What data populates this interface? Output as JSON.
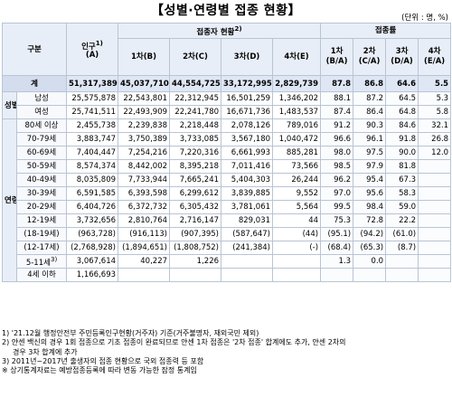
{
  "title": "【성별·연령별 접종 현황】",
  "unit": "(단위 : 명, %)",
  "headers": {
    "category": "구분",
    "population": "인구",
    "population_sup": "1)",
    "population_code": "(A)",
    "vaccination_status": "접종자 현황",
    "vaccination_status_sup": "2)",
    "rate_group": "접종률",
    "dose1": "1차(B)",
    "dose2": "2차(C)",
    "dose3": "3차(D)",
    "dose4": "4차(E)",
    "rate1_a": "1차",
    "rate1_b": "(B/A)",
    "rate2_a": "2차",
    "rate2_b": "(C/A)",
    "rate3_a": "3차",
    "rate3_b": "(D/A)",
    "rate4_a": "4차",
    "rate4_b": "(E/A)"
  },
  "groups": {
    "sex": "성별",
    "age": "연령"
  },
  "rows": [
    {
      "label": "계",
      "pop": "51,317,389",
      "d1": "45,037,710",
      "d2": "44,554,725",
      "d3": "33,172,995",
      "d4": "2,829,739",
      "r1": "87.8",
      "r2": "86.8",
      "r3": "64.6",
      "r4": "5.5"
    },
    {
      "label": "남성",
      "pop": "25,575,878",
      "d1": "22,543,801",
      "d2": "22,312,945",
      "d3": "16,501,259",
      "d4": "1,346,202",
      "r1": "88.1",
      "r2": "87.2",
      "r3": "64.5",
      "r4": "5.3"
    },
    {
      "label": "여성",
      "pop": "25,741,511",
      "d1": "22,493,909",
      "d2": "22,241,780",
      "d3": "16,671,736",
      "d4": "1,483,537",
      "r1": "87.4",
      "r2": "86.4",
      "r3": "64.8",
      "r4": "5.8"
    },
    {
      "label": "80세 이상",
      "pop": "2,455,738",
      "d1": "2,239,838",
      "d2": "2,218,448",
      "d3": "2,078,126",
      "d4": "789,016",
      "r1": "91.2",
      "r2": "90.3",
      "r3": "84.6",
      "r4": "32.1"
    },
    {
      "label": "70-79세",
      "pop": "3,883,747",
      "d1": "3,750,389",
      "d2": "3,733,085",
      "d3": "3,567,180",
      "d4": "1,040,472",
      "r1": "96.6",
      "r2": "96.1",
      "r3": "91.8",
      "r4": "26.8"
    },
    {
      "label": "60-69세",
      "pop": "7,404,447",
      "d1": "7,254,216",
      "d2": "7,220,316",
      "d3": "6,661,993",
      "d4": "885,281",
      "r1": "98.0",
      "r2": "97.5",
      "r3": "90.0",
      "r4": "12.0"
    },
    {
      "label": "50-59세",
      "pop": "8,574,374",
      "d1": "8,442,002",
      "d2": "8,395,218",
      "d3": "7,011,416",
      "d4": "73,566",
      "r1": "98.5",
      "r2": "97.9",
      "r3": "81.8",
      "r4": ""
    },
    {
      "label": "40-49세",
      "pop": "8,035,809",
      "d1": "7,733,944",
      "d2": "7,665,241",
      "d3": "5,404,303",
      "d4": "26,244",
      "r1": "96.2",
      "r2": "95.4",
      "r3": "67.3",
      "r4": ""
    },
    {
      "label": "30-39세",
      "pop": "6,591,585",
      "d1": "6,393,598",
      "d2": "6,299,612",
      "d3": "3,839,885",
      "d4": "9,552",
      "r1": "97.0",
      "r2": "95.6",
      "r3": "58.3",
      "r4": ""
    },
    {
      "label": "20-29세",
      "pop": "6,404,726",
      "d1": "6,372,732",
      "d2": "6,305,432",
      "d3": "3,781,061",
      "d4": "5,564",
      "r1": "99.5",
      "r2": "98.4",
      "r3": "59.0",
      "r4": ""
    },
    {
      "label": "12-19세",
      "pop": "3,732,656",
      "d1": "2,810,764",
      "d2": "2,716,147",
      "d3": "829,031",
      "d4": "44",
      "r1": "75.3",
      "r2": "72.8",
      "r3": "22.2",
      "r4": ""
    },
    {
      "label": "(18-19세)",
      "pop": "(963,728)",
      "d1": "(916,113)",
      "d2": "(907,395)",
      "d3": "(587,647)",
      "d4": "(44)",
      "r1": "(95.1)",
      "r2": "(94.2)",
      "r3": "(61.0)",
      "r4": ""
    },
    {
      "label": "(12-17세)",
      "pop": "(2,768,928)",
      "d1": "(1,894,651)",
      "d2": "(1,808,752)",
      "d3": "(241,384)",
      "d4": "(-)",
      "r1": "(68.4)",
      "r2": "(65.3)",
      "r3": "(8.7)",
      "r4": ""
    },
    {
      "label": "5-11세",
      "label_sup": "3)",
      "pop": "3,067,614",
      "d1": "40,227",
      "d2": "1,226",
      "d3": "",
      "d4": "",
      "r1": "1.3",
      "r2": "0.0",
      "r3": "",
      "r4": ""
    },
    {
      "label": "4세 이하",
      "pop": "1,166,693",
      "d1": "",
      "d2": "",
      "d3": "",
      "d4": "",
      "r1": "",
      "r2": "",
      "r3": "",
      "r4": ""
    }
  ],
  "notes": [
    "1) '21.12월 행정안전부 주민등록인구현황(거주자) 기준(거주불명자, 재외국민 제외)",
    "2) 얀센 백신의 경우 1회 접종으로 기초 접종이 완료되므로 얀센 1차 접종은 '2차 접종' 합계에도 추가, 얀센 2차의",
    "경우 3차 합계에 추가",
    "3) 2011년~2017년 출생자의 접종 현황으로 국외 접종력 등 포함",
    "※ 상기통계자료는 예방접종등록에 따라 변동 가능한 잠정 통계임"
  ]
}
